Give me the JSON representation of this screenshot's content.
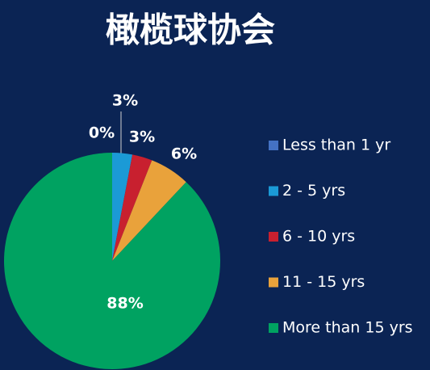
{
  "chart_data": {
    "type": "pie",
    "title": "橄榄球协会",
    "categories": [
      "Less than 1 yr",
      "2 - 5 yrs",
      "6 - 10 yrs",
      "11 - 15 yrs",
      "More than 15 yrs"
    ],
    "values": [
      0,
      3,
      3,
      6,
      88
    ],
    "value_labels": [
      "0%",
      "3%",
      "3%",
      "6%",
      "88%"
    ],
    "colors": [
      "#4472c4",
      "#1b9ad6",
      "#c8202f",
      "#e9a23b",
      "#00a261"
    ],
    "legend": "right"
  }
}
